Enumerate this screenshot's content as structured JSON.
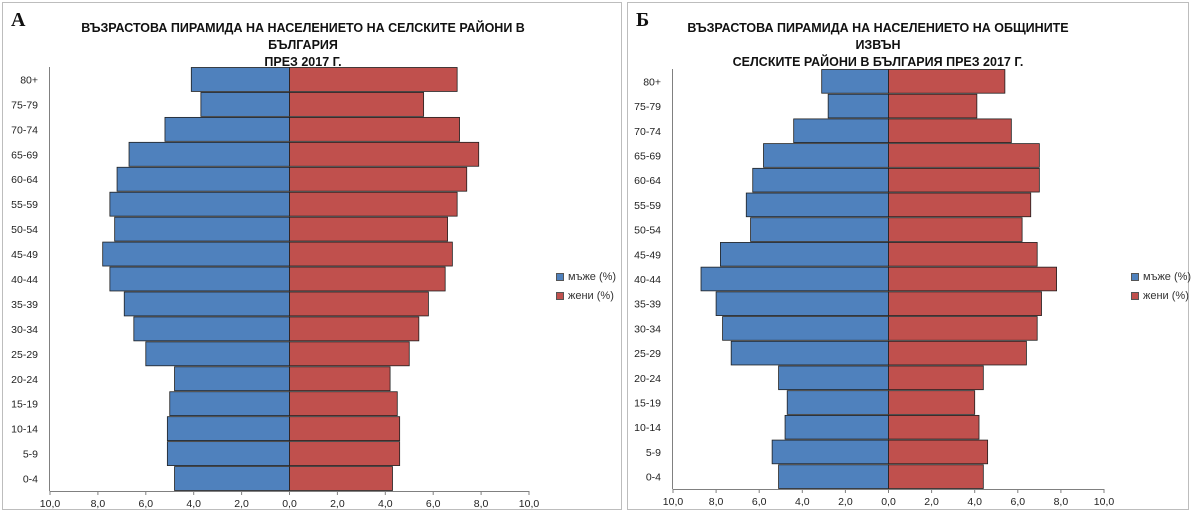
{
  "colors": {
    "male": "#4f81bd",
    "female": "#c0504d",
    "axis": "#808080",
    "bar_border": "#1f1f1f"
  },
  "chart_data": [
    {
      "type": "bar",
      "orientation": "horizontal",
      "panel_letter": "А",
      "title_line1": "ВЪЗРАСТОВА ПИРАМИДА НА НАСЕЛЕНИЕТО НА СЕЛСКИТЕ РАЙОНИ В БЪЛГАРИЯ",
      "title_line2": "ПРЕЗ 2017 Г.",
      "categories": [
        "0-4",
        "5-9",
        "10-14",
        "15-19",
        "20-24",
        "25-29",
        "30-34",
        "35-39",
        "40-44",
        "45-49",
        "50-54",
        "55-59",
        "60-64",
        "65-69",
        "70-74",
        "75-79",
        "80+"
      ],
      "series": [
        {
          "name": "мъже (%)",
          "values": [
            4.8,
            5.1,
            5.1,
            5.0,
            4.8,
            6.0,
            6.5,
            6.9,
            7.5,
            7.8,
            7.3,
            7.5,
            7.2,
            6.7,
            5.2,
            3.7,
            4.1
          ]
        },
        {
          "name": "жени (%)",
          "values": [
            4.3,
            4.6,
            4.6,
            4.5,
            4.2,
            5.0,
            5.4,
            5.8,
            6.5,
            6.8,
            6.6,
            7.0,
            7.4,
            7.9,
            7.1,
            5.6,
            7.0
          ]
        }
      ],
      "xlim": [
        -10,
        10
      ],
      "xticks": [
        "10,0",
        "8,0",
        "6,0",
        "4,0",
        "2,0",
        "0,0",
        "2,0",
        "4,0",
        "6,0",
        "8,0",
        "10,0"
      ],
      "grid": false,
      "legend_position": "right"
    },
    {
      "type": "bar",
      "orientation": "horizontal",
      "panel_letter": "Б",
      "title_line1": "ВЪЗРАСТОВА ПИРАМИДА НА НАСЕЛЕНИЕТО НА ОБЩИНИТЕ ИЗВЪН",
      "title_line2": "СЕЛСКИТЕ РАЙОНИ В БЪЛГАРИЯ ПРЕЗ 2017 Г.",
      "categories": [
        "0-4",
        "5-9",
        "10-14",
        "15-19",
        "20-24",
        "25-29",
        "30-34",
        "35-39",
        "40-44",
        "45-49",
        "50-54",
        "55-59",
        "60-64",
        "65-69",
        "70-74",
        "75-79",
        "80+"
      ],
      "series": [
        {
          "name": "мъже (%)",
          "values": [
            5.1,
            5.4,
            4.8,
            4.7,
            5.1,
            7.3,
            7.7,
            8.0,
            8.7,
            7.8,
            6.4,
            6.6,
            6.3,
            5.8,
            4.4,
            2.8,
            3.1
          ]
        },
        {
          "name": "жени (%)",
          "values": [
            4.4,
            4.6,
            4.2,
            4.0,
            4.4,
            6.4,
            6.9,
            7.1,
            7.8,
            6.9,
            6.2,
            6.6,
            7.0,
            7.0,
            5.7,
            4.1,
            5.4
          ]
        }
      ],
      "xlim": [
        -10,
        10
      ],
      "xticks": [
        "10,0",
        "8,0",
        "6,0",
        "4,0",
        "2,0",
        "0,0",
        "2,0",
        "4,0",
        "6,0",
        "8,0",
        "10,0"
      ],
      "grid": false,
      "legend_position": "right"
    }
  ]
}
